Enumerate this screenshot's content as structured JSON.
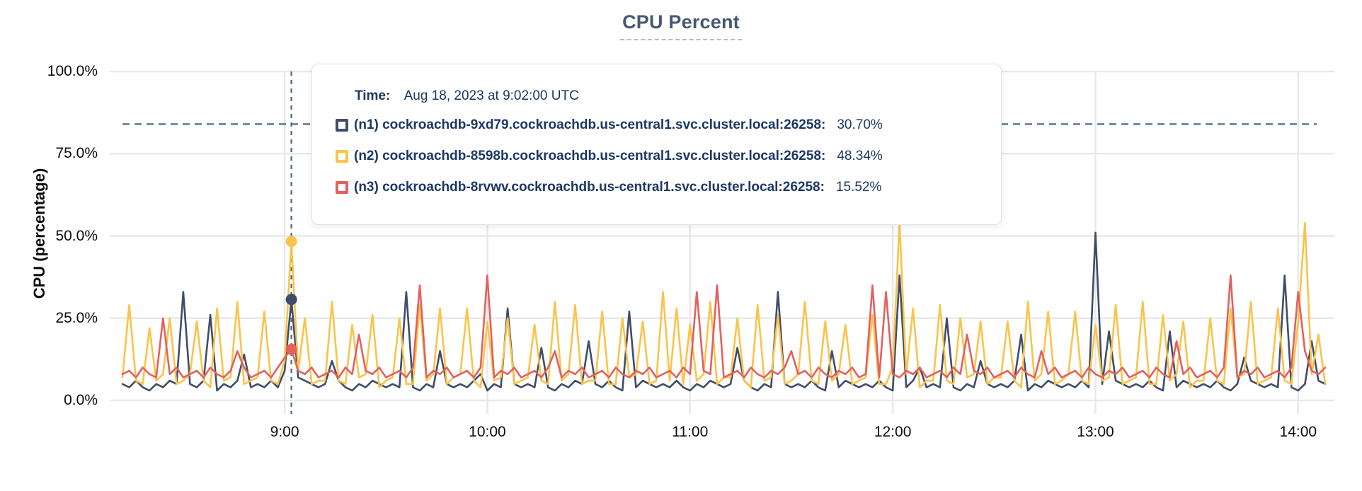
{
  "title": "CPU Percent",
  "tooltip": {
    "time_label": "Time:",
    "time_value": "Aug 18, 2023 at 9:02:00 UTC",
    "rows": [
      {
        "label": "(n1) cockroachdb-9xd79.cockroachdb.us-central1.svc.cluster.local:26258:",
        "value": "30.70%",
        "color": "#3f4d68"
      },
      {
        "label": "(n2) cockroachdb-8598b.cockroachdb.us-central1.svc.cluster.local:26258:",
        "value": "48.34%",
        "color": "#fbc349"
      },
      {
        "label": "(n3) cockroachdb-8rvwv.cockroachdb.us-central1.svc.cluster.local:26258:",
        "value": "15.52%",
        "color": "#e2615e"
      }
    ]
  },
  "chart_data": {
    "type": "line",
    "title": "CPU Percent",
    "xlabel": "",
    "ylabel": "CPU (percentage)",
    "ylim": [
      0,
      100
    ],
    "grid": true,
    "y_ticks": [
      {
        "label": "0.0%",
        "value": 0
      },
      {
        "label": "25.0%",
        "value": 25
      },
      {
        "label": "50.0%",
        "value": 50
      },
      {
        "label": "75.0%",
        "value": 75
      },
      {
        "label": "100.0%",
        "value": 100
      }
    ],
    "x_ticks": [
      {
        "label": "9:00",
        "minute": 540
      },
      {
        "label": "10:00",
        "minute": 600
      },
      {
        "label": "11:00",
        "minute": 660
      },
      {
        "label": "12:00",
        "minute": 720
      },
      {
        "label": "13:00",
        "minute": 780
      },
      {
        "label": "14:00",
        "minute": 840
      }
    ],
    "x_start_minute": 492,
    "x_step_minutes": 2,
    "threshold_value": 84,
    "hover": {
      "index": 25,
      "time": "9:02",
      "values": [
        30.7,
        48.34,
        15.52
      ]
    },
    "colors": {
      "grid": "#e9e9e9",
      "dashed": "#53708d",
      "title": "#475872",
      "tooltip_text": "#1b3764"
    },
    "series": [
      {
        "name": "(n1) cockroachdb-9xd79.cockroachdb.us-central1.svc.cluster.local:26258",
        "color": "#3f4d68",
        "values": [
          5,
          4,
          6,
          4,
          3,
          5,
          4,
          6,
          5,
          33,
          5,
          4,
          6,
          26,
          3,
          5,
          4,
          6,
          14,
          4,
          5,
          4,
          6,
          4,
          9,
          30.7,
          7,
          6,
          5,
          4,
          5,
          12,
          6,
          4,
          3,
          5,
          4,
          6,
          5,
          4,
          5,
          4,
          33,
          4,
          3,
          5,
          4,
          15,
          5,
          4,
          5,
          4,
          6,
          8,
          3,
          5,
          4,
          28,
          5,
          4,
          5,
          4,
          16,
          4,
          3,
          5,
          4,
          6,
          5,
          18,
          5,
          4,
          6,
          4,
          3,
          27,
          4,
          6,
          5,
          4,
          5,
          4,
          6,
          4,
          3,
          5,
          4,
          6,
          5,
          4,
          5,
          16,
          6,
          4,
          3,
          5,
          4,
          33,
          5,
          4,
          5,
          4,
          6,
          4,
          3,
          15,
          4,
          6,
          5,
          4,
          5,
          4,
          6,
          4,
          3,
          38,
          4,
          6,
          10,
          4,
          5,
          4,
          25,
          4,
          3,
          5,
          4,
          12,
          5,
          4,
          5,
          4,
          6,
          20,
          3,
          5,
          4,
          6,
          5,
          4,
          5,
          4,
          6,
          4,
          51,
          5,
          21,
          6,
          5,
          4,
          5,
          4,
          6,
          4,
          3,
          21,
          4,
          6,
          5,
          4,
          5,
          4,
          6,
          4,
          3,
          5,
          13,
          6,
          5,
          4,
          5,
          4,
          38,
          4,
          3,
          5,
          18,
          6,
          5
        ]
      },
      {
        "name": "(n2) cockroachdb-8598b.cockroachdb.us-central1.svc.cluster.local:26258",
        "color": "#fbc349",
        "values": [
          7,
          29,
          6,
          5,
          22,
          6,
          8,
          25,
          5,
          6,
          8,
          24,
          6,
          4,
          28,
          6,
          7,
          30,
          5,
          6,
          7,
          27,
          6,
          5,
          12,
          48.34,
          9,
          25,
          5,
          6,
          6,
          30,
          6,
          5,
          23,
          7,
          8,
          26,
          4,
          6,
          7,
          25,
          5,
          5,
          29,
          6,
          8,
          28,
          5,
          7,
          8,
          28,
          6,
          4,
          24,
          6,
          7,
          25,
          5,
          6,
          7,
          23,
          6,
          5,
          30,
          6,
          8,
          29,
          5,
          6,
          6,
          27,
          5,
          5,
          25,
          7,
          8,
          24,
          5,
          6,
          33,
          6,
          28,
          5,
          23,
          6,
          8,
          30,
          5,
          7,
          7,
          25,
          6,
          4,
          29,
          6,
          7,
          26,
          5,
          6,
          8,
          30,
          6,
          5,
          24,
          6,
          8,
          23,
          5,
          6,
          7,
          26,
          5,
          5,
          10,
          54,
          8,
          28,
          4,
          6,
          6,
          29,
          6,
          5,
          25,
          7,
          8,
          24,
          5,
          7,
          7,
          24,
          6,
          4,
          30,
          6,
          8,
          27,
          5,
          6,
          8,
          27,
          6,
          5,
          23,
          6,
          7,
          29,
          5,
          6,
          7,
          30,
          5,
          5,
          26,
          6,
          8,
          24,
          4,
          6,
          6,
          25,
          6,
          5,
          28,
          7,
          8,
          30,
          5,
          6,
          7,
          28,
          6,
          5,
          24,
          54,
          8,
          20,
          5
        ]
      },
      {
        "name": "(n3) cockroachdb-8rvwv.cockroachdb.us-central1.svc.cluster.local:26258",
        "color": "#e2615e",
        "values": [
          8,
          9,
          7,
          10,
          8,
          7,
          25,
          8,
          10,
          7,
          8,
          9,
          7,
          10,
          8,
          7,
          9,
          15,
          10,
          7,
          8,
          9,
          7,
          10,
          13,
          15.52,
          9,
          8,
          10,
          7,
          8,
          9,
          7,
          10,
          8,
          20,
          9,
          8,
          10,
          7,
          8,
          9,
          7,
          10,
          35,
          7,
          9,
          8,
          10,
          7,
          8,
          9,
          7,
          10,
          38,
          7,
          9,
          8,
          10,
          7,
          8,
          9,
          7,
          10,
          15,
          7,
          9,
          8,
          10,
          7,
          8,
          9,
          7,
          10,
          8,
          7,
          9,
          8,
          10,
          7,
          8,
          9,
          7,
          10,
          8,
          33,
          9,
          8,
          35,
          7,
          8,
          9,
          7,
          10,
          8,
          7,
          9,
          8,
          10,
          15,
          8,
          9,
          7,
          10,
          8,
          7,
          9,
          8,
          10,
          7,
          8,
          35,
          7,
          33,
          8,
          7,
          9,
          8,
          10,
          7,
          8,
          9,
          7,
          10,
          8,
          20,
          9,
          8,
          10,
          7,
          8,
          9,
          7,
          10,
          8,
          7,
          15,
          8,
          10,
          7,
          8,
          9,
          7,
          10,
          8,
          7,
          9,
          8,
          10,
          7,
          8,
          9,
          7,
          10,
          8,
          7,
          18,
          8,
          10,
          7,
          8,
          9,
          7,
          10,
          38,
          7,
          9,
          8,
          10,
          7,
          8,
          9,
          7,
          10,
          33,
          15,
          9,
          8,
          10
        ]
      }
    ]
  }
}
